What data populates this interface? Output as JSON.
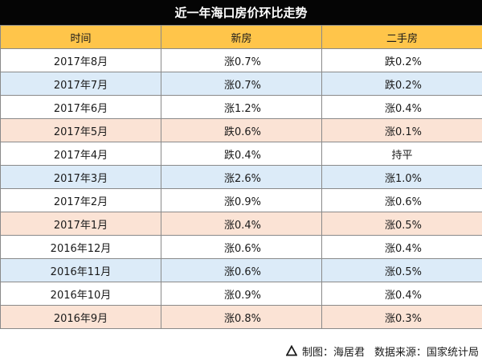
{
  "title": "近一年海口房价环比走势",
  "headers": [
    "时间",
    "新房",
    "二手房"
  ],
  "row_colors": {
    "white": "#ffffff",
    "blue": "#dcebf8",
    "peach": "#fbe3d5"
  },
  "rows": [
    {
      "time": "2017年8月",
      "new": "涨0.7%",
      "used": "跌0.2%",
      "bg": "white"
    },
    {
      "time": "2017年7月",
      "new": "涨0.7%",
      "used": "跌0.2%",
      "bg": "blue"
    },
    {
      "time": "2017年6月",
      "new": "涨1.2%",
      "used": "涨0.4%",
      "bg": "white"
    },
    {
      "time": "2017年5月",
      "new": "跌0.6%",
      "used": "涨0.1%",
      "bg": "peach"
    },
    {
      "time": "2017年4月",
      "new": "跌0.4%",
      "used": "持平",
      "bg": "white"
    },
    {
      "time": "2017年3月",
      "new": "涨2.6%",
      "used": "涨1.0%",
      "bg": "blue"
    },
    {
      "time": "2017年2月",
      "new": "涨0.9%",
      "used": "涨0.6%",
      "bg": "white"
    },
    {
      "time": "2017年1月",
      "new": "涨0.4%",
      "used": "涨0.5%",
      "bg": "peach"
    },
    {
      "time": "2016年12月",
      "new": "涨0.6%",
      "used": "涨0.4%",
      "bg": "white"
    },
    {
      "time": "2016年11月",
      "new": "涨0.6%",
      "used": "涨0.5%",
      "bg": "blue"
    },
    {
      "time": "2016年10月",
      "new": "涨0.9%",
      "used": "涨0.4%",
      "bg": "white"
    },
    {
      "time": "2016年9月",
      "new": "涨0.8%",
      "used": "涨0.3%",
      "bg": "peach"
    }
  ],
  "footer": {
    "icon": "triangle-icon",
    "maker": "制图：海居君",
    "source": "数据来源：国家统计局"
  }
}
